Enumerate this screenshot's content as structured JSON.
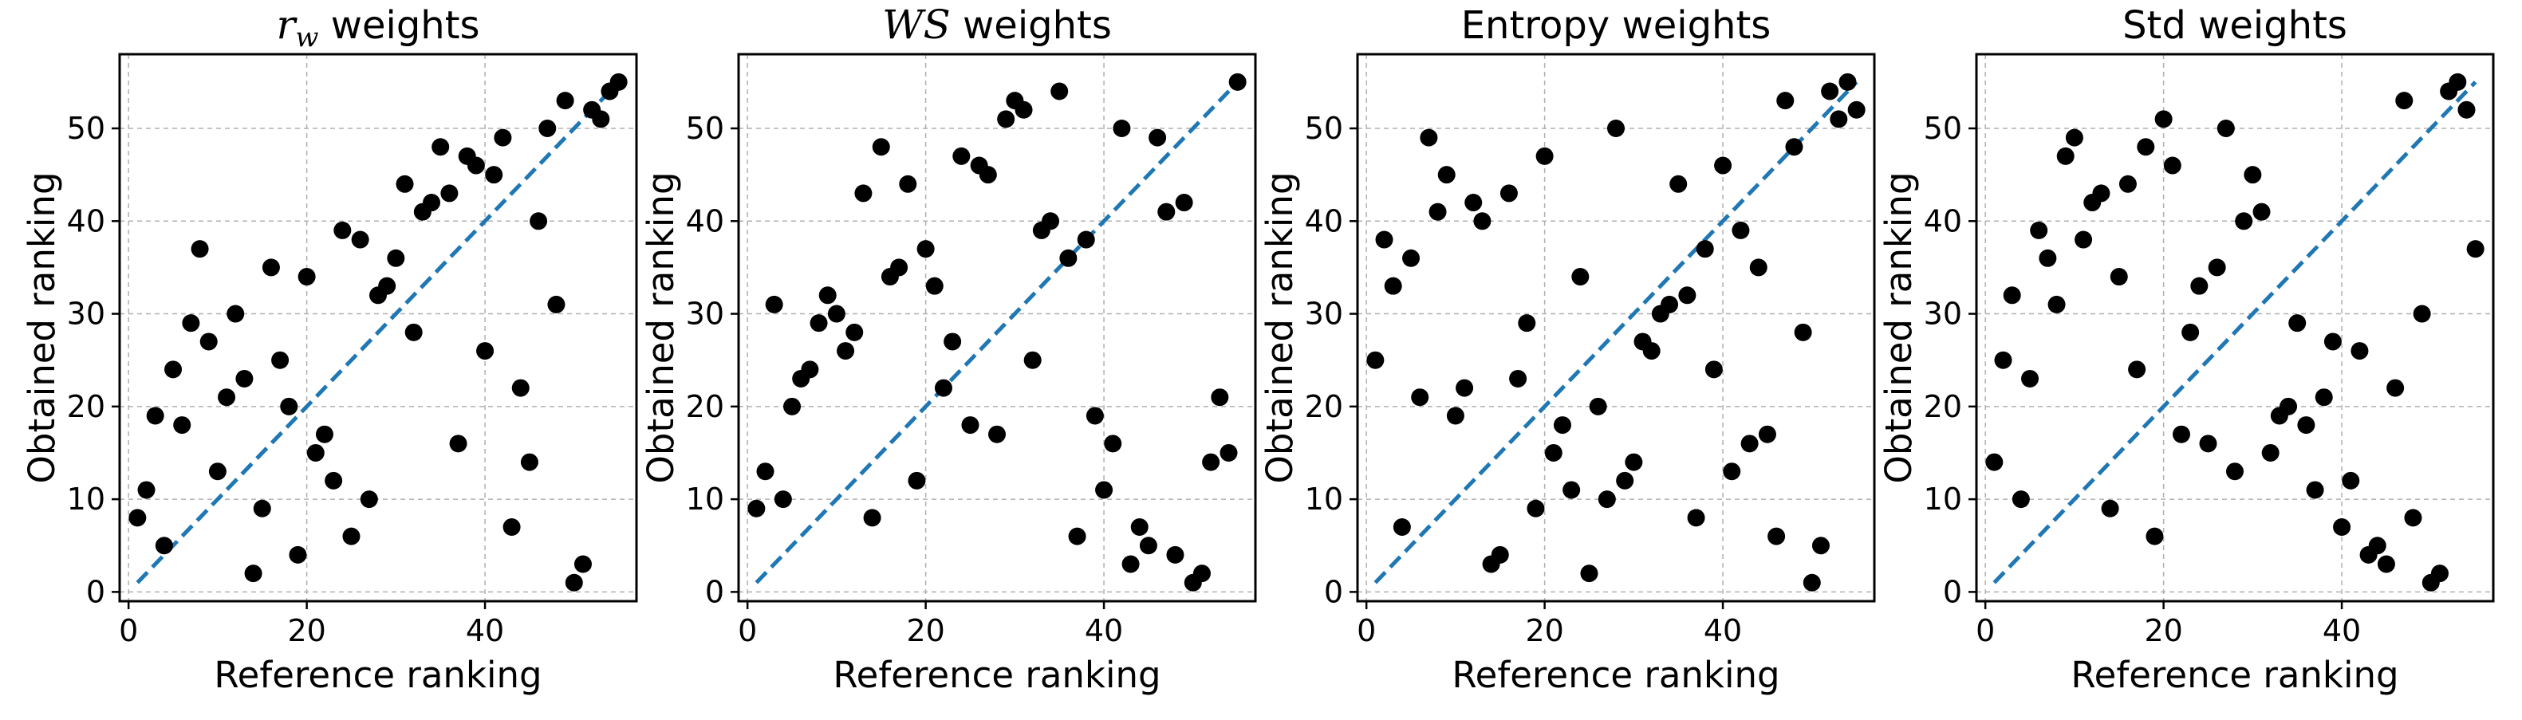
{
  "colors": {
    "points": "#000000",
    "diagonal": "#1f77b4",
    "grid": "#b0b0b0",
    "frame": "#000000"
  },
  "chart_data": [
    {
      "type": "scatter",
      "title": "r_w weights",
      "title_math": "r",
      "title_math_sub": "w",
      "title_rest": " weights",
      "xlabel": "Reference ranking",
      "ylabel": "Obtained ranking",
      "xlim": [
        -1,
        57
      ],
      "ylim": [
        -1,
        58
      ],
      "xticks": [
        0,
        20,
        40
      ],
      "yticks": [
        0,
        10,
        20,
        30,
        40,
        50
      ],
      "grid": true,
      "diagonal": [
        [
          1,
          1
        ],
        [
          55,
          55
        ]
      ],
      "points": [
        [
          1,
          8
        ],
        [
          2,
          11
        ],
        [
          3,
          19
        ],
        [
          4,
          5
        ],
        [
          5,
          24
        ],
        [
          6,
          18
        ],
        [
          7,
          29
        ],
        [
          8,
          37
        ],
        [
          9,
          27
        ],
        [
          10,
          13
        ],
        [
          11,
          21
        ],
        [
          12,
          30
        ],
        [
          13,
          23
        ],
        [
          14,
          2
        ],
        [
          15,
          9
        ],
        [
          16,
          35
        ],
        [
          17,
          25
        ],
        [
          18,
          20
        ],
        [
          19,
          4
        ],
        [
          20,
          34
        ],
        [
          21,
          15
        ],
        [
          22,
          17
        ],
        [
          23,
          12
        ],
        [
          24,
          39
        ],
        [
          25,
          6
        ],
        [
          26,
          38
        ],
        [
          27,
          10
        ],
        [
          28,
          32
        ],
        [
          29,
          33
        ],
        [
          30,
          36
        ],
        [
          31,
          44
        ],
        [
          32,
          28
        ],
        [
          33,
          41
        ],
        [
          34,
          42
        ],
        [
          35,
          48
        ],
        [
          36,
          43
        ],
        [
          37,
          16
        ],
        [
          38,
          47
        ],
        [
          39,
          46
        ],
        [
          40,
          26
        ],
        [
          41,
          45
        ],
        [
          42,
          49
        ],
        [
          43,
          7
        ],
        [
          44,
          22
        ],
        [
          45,
          14
        ],
        [
          46,
          40
        ],
        [
          47,
          50
        ],
        [
          48,
          31
        ],
        [
          49,
          53
        ],
        [
          50,
          1
        ],
        [
          51,
          3
        ],
        [
          52,
          52
        ],
        [
          53,
          51
        ],
        [
          54,
          54
        ],
        [
          55,
          55
        ]
      ]
    },
    {
      "type": "scatter",
      "title": "WS weights",
      "title_math": "WS",
      "title_math_sub": "",
      "title_rest": " weights",
      "xlabel": "Reference ranking",
      "ylabel": "Obtained ranking",
      "xlim": [
        -1,
        57
      ],
      "ylim": [
        -1,
        58
      ],
      "xticks": [
        0,
        20,
        40
      ],
      "yticks": [
        0,
        10,
        20,
        30,
        40,
        50
      ],
      "grid": true,
      "diagonal": [
        [
          1,
          1
        ],
        [
          55,
          55
        ]
      ],
      "points": [
        [
          1,
          9
        ],
        [
          2,
          13
        ],
        [
          3,
          31
        ],
        [
          4,
          10
        ],
        [
          5,
          20
        ],
        [
          6,
          23
        ],
        [
          7,
          24
        ],
        [
          8,
          29
        ],
        [
          9,
          32
        ],
        [
          10,
          30
        ],
        [
          11,
          26
        ],
        [
          12,
          28
        ],
        [
          13,
          43
        ],
        [
          14,
          8
        ],
        [
          15,
          48
        ],
        [
          16,
          34
        ],
        [
          17,
          35
        ],
        [
          18,
          44
        ],
        [
          19,
          12
        ],
        [
          20,
          37
        ],
        [
          21,
          33
        ],
        [
          22,
          22
        ],
        [
          23,
          27
        ],
        [
          24,
          47
        ],
        [
          25,
          18
        ],
        [
          26,
          46
        ],
        [
          27,
          45
        ],
        [
          28,
          17
        ],
        [
          29,
          51
        ],
        [
          30,
          53
        ],
        [
          31,
          52
        ],
        [
          32,
          25
        ],
        [
          33,
          39
        ],
        [
          34,
          40
        ],
        [
          35,
          54
        ],
        [
          36,
          36
        ],
        [
          37,
          6
        ],
        [
          38,
          38
        ],
        [
          39,
          19
        ],
        [
          40,
          11
        ],
        [
          41,
          16
        ],
        [
          42,
          50
        ],
        [
          43,
          3
        ],
        [
          44,
          7
        ],
        [
          45,
          5
        ],
        [
          46,
          49
        ],
        [
          47,
          41
        ],
        [
          48,
          4
        ],
        [
          49,
          42
        ],
        [
          50,
          1
        ],
        [
          51,
          2
        ],
        [
          52,
          14
        ],
        [
          53,
          21
        ],
        [
          54,
          15
        ],
        [
          55,
          55
        ]
      ]
    },
    {
      "type": "scatter",
      "title": "Entropy weights",
      "title_math": "",
      "title_math_sub": "",
      "title_rest": "Entropy weights",
      "xlabel": "Reference ranking",
      "ylabel": "Obtained ranking",
      "xlim": [
        -1,
        57
      ],
      "ylim": [
        -1,
        58
      ],
      "xticks": [
        0,
        20,
        40
      ],
      "yticks": [
        0,
        10,
        20,
        30,
        40,
        50
      ],
      "grid": true,
      "diagonal": [
        [
          1,
          1
        ],
        [
          55,
          55
        ]
      ],
      "points": [
        [
          1,
          25
        ],
        [
          2,
          38
        ],
        [
          3,
          33
        ],
        [
          4,
          7
        ],
        [
          5,
          36
        ],
        [
          6,
          21
        ],
        [
          7,
          49
        ],
        [
          8,
          41
        ],
        [
          9,
          45
        ],
        [
          10,
          19
        ],
        [
          11,
          22
        ],
        [
          12,
          42
        ],
        [
          13,
          40
        ],
        [
          14,
          3
        ],
        [
          15,
          4
        ],
        [
          16,
          43
        ],
        [
          17,
          23
        ],
        [
          18,
          29
        ],
        [
          19,
          9
        ],
        [
          20,
          47
        ],
        [
          21,
          15
        ],
        [
          22,
          18
        ],
        [
          23,
          11
        ],
        [
          24,
          34
        ],
        [
          25,
          2
        ],
        [
          26,
          20
        ],
        [
          27,
          10
        ],
        [
          28,
          50
        ],
        [
          29,
          12
        ],
        [
          30,
          14
        ],
        [
          31,
          27
        ],
        [
          32,
          26
        ],
        [
          33,
          30
        ],
        [
          34,
          31
        ],
        [
          35,
          44
        ],
        [
          36,
          32
        ],
        [
          37,
          8
        ],
        [
          38,
          37
        ],
        [
          39,
          24
        ],
        [
          40,
          46
        ],
        [
          41,
          13
        ],
        [
          42,
          39
        ],
        [
          43,
          16
        ],
        [
          44,
          35
        ],
        [
          45,
          17
        ],
        [
          46,
          6
        ],
        [
          47,
          53
        ],
        [
          48,
          48
        ],
        [
          49,
          28
        ],
        [
          50,
          1
        ],
        [
          51,
          5
        ],
        [
          52,
          54
        ],
        [
          53,
          51
        ],
        [
          54,
          55
        ],
        [
          55,
          52
        ]
      ]
    },
    {
      "type": "scatter",
      "title": "Std weights",
      "title_math": "",
      "title_math_sub": "",
      "title_rest": "Std weights",
      "xlabel": "Reference ranking",
      "ylabel": "Obtained ranking",
      "xlim": [
        -1,
        57
      ],
      "ylim": [
        -1,
        58
      ],
      "xticks": [
        0,
        20,
        40
      ],
      "yticks": [
        0,
        10,
        20,
        30,
        40,
        50
      ],
      "grid": true,
      "diagonal": [
        [
          1,
          1
        ],
        [
          55,
          55
        ]
      ],
      "points": [
        [
          1,
          14
        ],
        [
          2,
          25
        ],
        [
          3,
          32
        ],
        [
          4,
          10
        ],
        [
          5,
          23
        ],
        [
          6,
          39
        ],
        [
          7,
          36
        ],
        [
          8,
          31
        ],
        [
          9,
          47
        ],
        [
          10,
          49
        ],
        [
          11,
          38
        ],
        [
          12,
          42
        ],
        [
          13,
          43
        ],
        [
          14,
          9
        ],
        [
          15,
          34
        ],
        [
          16,
          44
        ],
        [
          17,
          24
        ],
        [
          18,
          48
        ],
        [
          19,
          6
        ],
        [
          20,
          51
        ],
        [
          21,
          46
        ],
        [
          22,
          17
        ],
        [
          23,
          28
        ],
        [
          24,
          33
        ],
        [
          25,
          16
        ],
        [
          26,
          35
        ],
        [
          27,
          50
        ],
        [
          28,
          13
        ],
        [
          29,
          40
        ],
        [
          30,
          45
        ],
        [
          31,
          41
        ],
        [
          32,
          15
        ],
        [
          33,
          19
        ],
        [
          34,
          20
        ],
        [
          35,
          29
        ],
        [
          36,
          18
        ],
        [
          37,
          11
        ],
        [
          38,
          21
        ],
        [
          39,
          27
        ],
        [
          40,
          7
        ],
        [
          41,
          12
        ],
        [
          42,
          26
        ],
        [
          43,
          4
        ],
        [
          44,
          5
        ],
        [
          45,
          3
        ],
        [
          46,
          22
        ],
        [
          47,
          53
        ],
        [
          48,
          8
        ],
        [
          49,
          30
        ],
        [
          50,
          1
        ],
        [
          51,
          2
        ],
        [
          52,
          54
        ],
        [
          53,
          55
        ],
        [
          54,
          52
        ],
        [
          55,
          37
        ]
      ]
    }
  ]
}
